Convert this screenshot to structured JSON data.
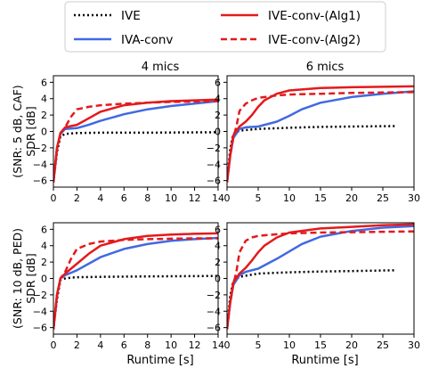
{
  "legend": {
    "placement": "top",
    "entries": [
      {
        "key": "ive",
        "label": "IVE",
        "color": "#000000",
        "style": "dotted"
      },
      {
        "key": "iva_conv",
        "label": "IVA-conv",
        "color": "#4169e1",
        "style": "solid"
      },
      {
        "key": "ive_alg1",
        "label": "IVE-conv-(Alg1)",
        "color": "#e31a1c",
        "style": "solid"
      },
      {
        "key": "ive_alg2",
        "label": "IVE-conv-(Alg2)",
        "color": "#e31a1c",
        "style": "dashed"
      }
    ]
  },
  "columns": [
    "4 mics",
    "6 mics"
  ],
  "rows": [
    "(SNR: 5 dB, CAF)\nSDR [dB]",
    "(SNR: 10 dB, PED)\nSDR [dB]"
  ],
  "xlabel": "Runtime [s]",
  "chart_data": [
    {
      "type": "line",
      "row": 0,
      "col": 0,
      "title": "4 mics",
      "xlabel": "",
      "ylabel": "(SNR: 5 dB, CAF)\nSDR [dB]",
      "xlim": [
        0,
        14
      ],
      "ylim": [
        -6.8,
        6.8
      ],
      "xticks": [
        0,
        2,
        4,
        6,
        8,
        10,
        12,
        14
      ],
      "yticks": [
        -6,
        -4,
        -2,
        0,
        2,
        4,
        6
      ],
      "grid": false,
      "series": [
        {
          "name": "IVE",
          "x": [
            0,
            0.3,
            0.6,
            1,
            2,
            4,
            8,
            14
          ],
          "y": [
            -6.2,
            -2.5,
            -0.6,
            -0.3,
            -0.2,
            -0.15,
            -0.15,
            -0.1
          ]
        },
        {
          "name": "IVA-conv",
          "x": [
            0,
            0.3,
            0.6,
            1,
            2,
            3,
            4,
            6,
            8,
            10,
            12,
            14
          ],
          "y": [
            -6.2,
            -2.0,
            -0.3,
            0.3,
            0.4,
            0.8,
            1.3,
            2.1,
            2.7,
            3.1,
            3.4,
            3.7
          ]
        },
        {
          "name": "IVE-conv-(Alg1)",
          "x": [
            0,
            0.3,
            0.6,
            1,
            2,
            3,
            4,
            6,
            8,
            10,
            12,
            14
          ],
          "y": [
            -6.2,
            -2.0,
            -0.2,
            0.5,
            0.8,
            1.6,
            2.4,
            3.2,
            3.5,
            3.7,
            3.8,
            3.9
          ]
        },
        {
          "name": "IVE-conv-(Alg2)",
          "x": [
            0,
            0.3,
            0.6,
            1,
            1.5,
            2,
            3,
            4,
            6,
            8,
            10,
            12,
            14
          ],
          "y": [
            -6.2,
            -2.2,
            -0.2,
            0.5,
            1.8,
            2.7,
            3.0,
            3.2,
            3.4,
            3.5,
            3.6,
            3.65,
            3.7
          ]
        }
      ]
    },
    {
      "type": "line",
      "row": 0,
      "col": 1,
      "title": "6 mics",
      "xlabel": "",
      "ylabel": "",
      "xlim": [
        0,
        30
      ],
      "ylim": [
        -6.8,
        6.8
      ],
      "xticks": [
        0,
        5,
        10,
        15,
        20,
        25,
        30
      ],
      "yticks": [
        -6,
        -4,
        -2,
        0,
        2,
        4,
        6
      ],
      "grid": false,
      "series": [
        {
          "name": "IVE",
          "x": [
            0,
            0.5,
            1,
            2,
            5,
            10,
            15,
            20,
            27
          ],
          "y": [
            -6.2,
            -2.2,
            -0.3,
            0.1,
            0.3,
            0.45,
            0.55,
            0.6,
            0.65
          ]
        },
        {
          "name": "IVA-conv",
          "x": [
            0,
            0.5,
            1,
            2,
            3,
            5,
            8,
            10,
            12,
            15,
            20,
            25,
            30
          ],
          "y": [
            -6.2,
            -3.0,
            -0.8,
            0.3,
            0.5,
            0.6,
            1.2,
            1.9,
            2.7,
            3.5,
            4.2,
            4.6,
            4.9
          ]
        },
        {
          "name": "IVE-conv-(Alg1)",
          "x": [
            0,
            0.5,
            1,
            2,
            3,
            4,
            5,
            6,
            8,
            10,
            15,
            20,
            25,
            30
          ],
          "y": [
            -6.2,
            -3.0,
            -0.5,
            0.6,
            1.2,
            2.0,
            3.0,
            3.8,
            4.6,
            5.0,
            5.3,
            5.4,
            5.45,
            5.5
          ]
        },
        {
          "name": "IVE-conv-(Alg2)",
          "x": [
            0,
            0.5,
            1,
            1.5,
            2,
            3,
            4,
            5,
            8,
            10,
            15,
            20,
            25,
            30
          ],
          "y": [
            -6.2,
            -3.0,
            -0.8,
            0.6,
            2.5,
            3.4,
            3.8,
            4.1,
            4.4,
            4.5,
            4.6,
            4.7,
            4.75,
            4.8
          ]
        }
      ]
    },
    {
      "type": "line",
      "row": 1,
      "col": 0,
      "title": "",
      "xlabel": "Runtime [s]",
      "ylabel": "(SNR: 10 dB, PED)\nSDR [dB]",
      "xlim": [
        0,
        14
      ],
      "ylim": [
        -6.8,
        6.8
      ],
      "xticks": [
        0,
        2,
        4,
        6,
        8,
        10,
        12,
        14
      ],
      "yticks": [
        -6,
        -4,
        -2,
        0,
        2,
        4,
        6
      ],
      "grid": false,
      "series": [
        {
          "name": "IVE",
          "x": [
            0,
            0.3,
            0.6,
            1,
            1.5,
            2,
            4,
            8,
            14
          ],
          "y": [
            -6.2,
            -2.5,
            -0.2,
            0.0,
            0.1,
            0.15,
            0.2,
            0.25,
            0.3
          ]
        },
        {
          "name": "IVA-conv",
          "x": [
            0,
            0.3,
            0.6,
            1,
            1.5,
            2,
            3,
            4,
            6,
            8,
            10,
            12,
            14
          ],
          "y": [
            -6.2,
            -2.0,
            0.0,
            0.4,
            0.7,
            1.0,
            1.8,
            2.6,
            3.6,
            4.2,
            4.6,
            4.8,
            4.95
          ]
        },
        {
          "name": "IVE-conv-(Alg1)",
          "x": [
            0,
            0.3,
            0.6,
            1,
            1.5,
            2,
            3,
            4,
            6,
            8,
            10,
            12,
            14
          ],
          "y": [
            -6.2,
            -2.0,
            0.0,
            0.6,
            1.2,
            1.8,
            3.0,
            4.0,
            4.8,
            5.2,
            5.35,
            5.45,
            5.5
          ]
        },
        {
          "name": "IVE-conv-(Alg2)",
          "x": [
            0,
            0.3,
            0.6,
            1,
            1.5,
            2,
            3,
            4,
            6,
            8,
            10,
            12,
            14
          ],
          "y": [
            -6.2,
            -2.2,
            0.0,
            0.8,
            2.4,
            3.6,
            4.2,
            4.5,
            4.7,
            4.8,
            4.85,
            4.9,
            4.9
          ]
        }
      ]
    },
    {
      "type": "line",
      "row": 1,
      "col": 1,
      "title": "",
      "xlabel": "Runtime [s]",
      "ylabel": "",
      "xlim": [
        0,
        30
      ],
      "ylim": [
        -6.8,
        6.8
      ],
      "xticks": [
        0,
        5,
        10,
        15,
        20,
        25,
        30
      ],
      "yticks": [
        -6,
        -4,
        -2,
        0,
        2,
        4,
        6
      ],
      "grid": false,
      "series": [
        {
          "name": "IVE",
          "x": [
            0,
            0.5,
            1,
            2,
            5,
            10,
            15,
            20,
            27
          ],
          "y": [
            -6.2,
            -2.2,
            -0.3,
            0.2,
            0.6,
            0.75,
            0.85,
            0.9,
            1.0
          ]
        },
        {
          "name": "IVA-conv",
          "x": [
            0,
            0.5,
            1,
            2,
            3,
            5,
            8,
            10,
            12,
            15,
            20,
            25,
            30
          ],
          "y": [
            -6.2,
            -3.0,
            -0.8,
            0.4,
            0.8,
            1.2,
            2.4,
            3.3,
            4.2,
            5.1,
            5.8,
            6.2,
            6.4
          ]
        },
        {
          "name": "IVE-conv-(Alg1)",
          "x": [
            0,
            0.5,
            1,
            2,
            3,
            4,
            5,
            6,
            8,
            10,
            15,
            20,
            25,
            30
          ],
          "y": [
            -6.2,
            -3.0,
            -0.5,
            0.6,
            1.3,
            2.2,
            3.2,
            4.0,
            5.0,
            5.6,
            6.1,
            6.3,
            6.5,
            6.6
          ]
        },
        {
          "name": "IVE-conv-(Alg2)",
          "x": [
            0,
            0.5,
            1,
            1.5,
            2,
            3,
            4,
            5,
            8,
            10,
            15,
            20,
            25,
            30
          ],
          "y": [
            -6.2,
            -3.0,
            -0.8,
            0.8,
            3.2,
            4.6,
            5.0,
            5.2,
            5.4,
            5.5,
            5.6,
            5.65,
            5.7,
            5.75
          ]
        }
      ]
    }
  ]
}
